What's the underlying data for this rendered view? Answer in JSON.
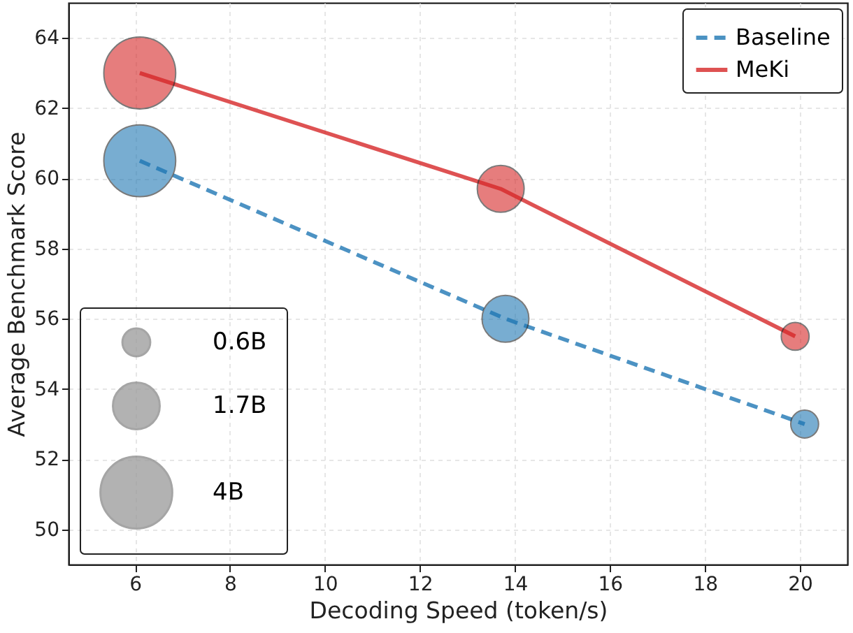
{
  "chart_data": {
    "type": "bubble",
    "xlabel": "Decoding Speed (token/s)",
    "ylabel": "Average Benchmark Score",
    "xlim": [
      4.6,
      21
    ],
    "xticks": [
      6,
      8,
      10,
      12,
      14,
      16,
      18,
      20
    ],
    "ylim": [
      49,
      65
    ],
    "yticks": [
      50,
      52,
      54,
      56,
      58,
      60,
      62,
      64
    ],
    "grid": true,
    "legend": "top right",
    "size_legend": [
      {
        "value": 0.6,
        "label": "0.6B"
      },
      {
        "value": 1.7,
        "label": "1.7B"
      },
      {
        "value": 4,
        "label": "4B"
      }
    ],
    "series": [
      {
        "name": "Baseline",
        "type": "line",
        "color": "#1f77b4",
        "line_style": "dashed",
        "x": [
          6.1,
          13.8,
          20.1
        ],
        "values": [
          60.5,
          56.0,
          53.0
        ]
      },
      {
        "name": "MeKi",
        "type": "line",
        "color": "#d62728",
        "line_style": "solid",
        "x": [
          6.1,
          13.7,
          19.9
        ],
        "values": [
          63.0,
          59.7,
          55.5
        ]
      },
      {
        "color": "#1f77b4",
        "x": [
          6.1,
          13.8,
          20.1
        ],
        "values": [
          60.5,
          56.0,
          53.0
        ],
        "sizes": [
          4,
          1.7,
          0.6
        ]
      },
      {
        "color": "#d62728",
        "x": [
          6.1,
          13.7,
          19.9
        ],
        "values": [
          63.0,
          59.7,
          55.5
        ],
        "sizes": [
          4,
          1.7,
          0.6
        ]
      }
    ]
  }
}
